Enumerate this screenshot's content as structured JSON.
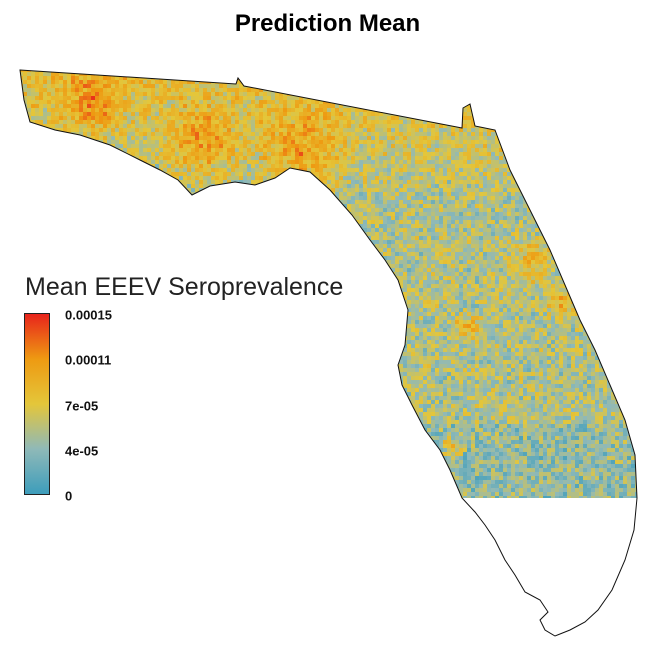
{
  "title": "Prediction Mean",
  "legend": {
    "title": "Mean EEEV Seroprevalence",
    "ticks": [
      "0.00015",
      "0.00011",
      "7e-05",
      "4e-05",
      "0"
    ],
    "colors": [
      "#3d9dbb",
      "#8fb9b8",
      "#e4c63a",
      "#ee9a12",
      "#e8241c"
    ]
  }
}
